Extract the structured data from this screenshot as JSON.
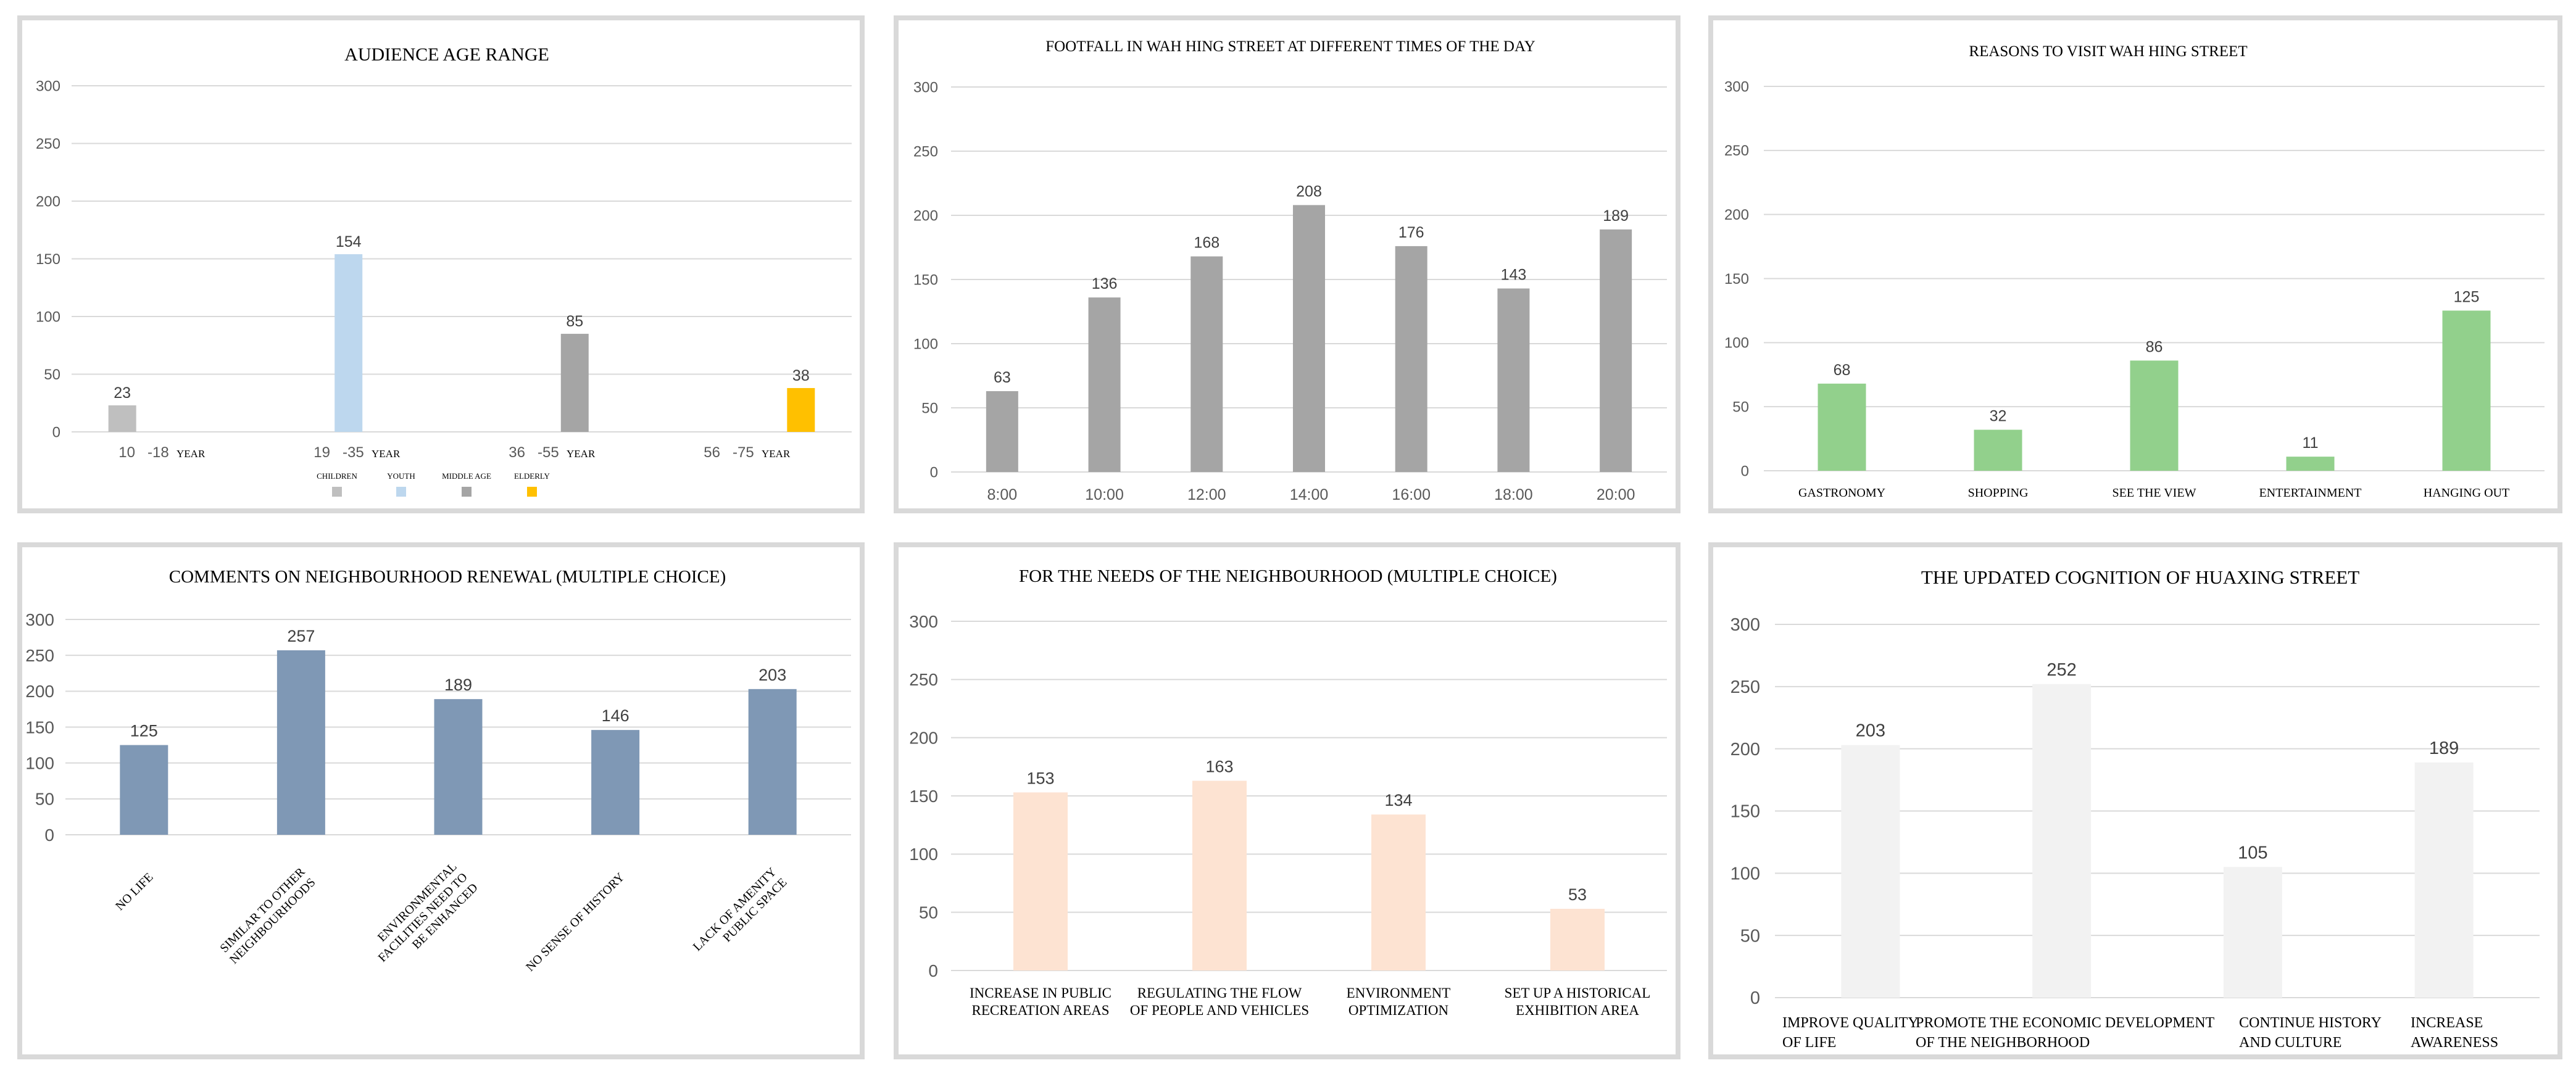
{
  "chart_data": [
    {
      "type": "bar",
      "title": "AUDIENCE AGE RANGE",
      "ylim": [
        0,
        300
      ],
      "yticks": [
        "0",
        "50",
        "100",
        "150",
        "200",
        "250",
        "300"
      ],
      "grid": true,
      "legend_position": "bottom",
      "categories": [
        "10 -18 YEAR",
        "19 -35 YEAR",
        "36 -55 YEAR",
        "56 -75 YEAR"
      ],
      "tick_labels": [
        {
          "number": "10",
          "range": "-18",
          "unit": "YEAR"
        },
        {
          "number": "19",
          "range": "-35",
          "unit": "YEAR"
        },
        {
          "number": "36",
          "range": "-55",
          "unit": "YEAR"
        },
        {
          "number": "56",
          "range": "-75",
          "unit": "YEAR"
        }
      ],
      "series": [
        {
          "name": "CHILDREN",
          "color": "#bfbfbf",
          "values": [
            23,
            null,
            null,
            null
          ]
        },
        {
          "name": "YOUTH",
          "color": "#bdd7ee",
          "values": [
            null,
            154,
            null,
            null
          ]
        },
        {
          "name": "MIDDLE AGE",
          "color": "#a5a5a5",
          "values": [
            null,
            null,
            85,
            null
          ]
        },
        {
          "name": "ELDERLY",
          "color": "#ffc000",
          "values": [
            null,
            null,
            null,
            38
          ]
        }
      ]
    },
    {
      "type": "bar",
      "title": "FOOTFALL IN WAH HING STREET AT DIFFERENT TIMES OF THE DAY",
      "ylim": [
        0,
        300
      ],
      "yticks": [
        "0",
        "50",
        "100",
        "150",
        "200",
        "250",
        "300"
      ],
      "grid": true,
      "categories": [
        "8:00",
        "10:00",
        "12:00",
        "14:00",
        "16:00",
        "18:00",
        "20:00"
      ],
      "values": [
        63,
        136,
        168,
        208,
        176,
        143,
        189
      ],
      "color": "#a5a5a5"
    },
    {
      "type": "bar",
      "title": "REASONS TO VISIT WAH HING STREET",
      "ylim": [
        0,
        300
      ],
      "yticks": [
        "0",
        "50",
        "100",
        "150",
        "200",
        "250",
        "300"
      ],
      "grid": true,
      "categories": [
        "GASTRONOMY",
        "SHOPPING",
        "SEE THE VIEW",
        "ENTERTAINMENT",
        "HANGING OUT"
      ],
      "values": [
        68,
        32,
        86,
        11,
        125
      ],
      "color": "#92d08c"
    },
    {
      "type": "bar",
      "title": "COMMENTS ON NEIGHBOURHOOD RENEWAL (MULTIPLE CHOICE)",
      "ylim": [
        0,
        300
      ],
      "yticks": [
        "0",
        "50",
        "100",
        "150",
        "200",
        "250",
        "300"
      ],
      "grid": true,
      "categories": [
        "NO LIFE",
        "SIMILAR TO OTHER NEIGHBOURHOODS",
        "ENVIRONMENTAL FACILITIES NEED TO BE ENHANCED",
        "NO SENSE OF HISTORY",
        "LACK OF AMENITY PUBLIC SPACE"
      ],
      "category_lines": [
        [
          "NO LIFE"
        ],
        [
          "SIMILAR TO OTHER",
          "NEIGHBOURHOODS"
        ],
        [
          "ENVIRONMENTAL",
          "FACILITIES NEED TO",
          "BE ENHANCED"
        ],
        [
          "NO SENSE OF HISTORY"
        ],
        [
          "LACK OF AMENITY",
          "PUBLIC SPACE"
        ]
      ],
      "values": [
        125,
        257,
        189,
        146,
        203
      ],
      "color": "#7f98b5"
    },
    {
      "type": "bar",
      "title": "FOR THE NEEDS OF THE NEIGHBOURHOOD (MULTIPLE CHOICE)",
      "ylim": [
        0,
        300
      ],
      "yticks": [
        "0",
        "50",
        "100",
        "150",
        "200",
        "250",
        "300"
      ],
      "grid": true,
      "categories": [
        "INCREASE IN PUBLIC RECREATION AREAS",
        "REGULATING THE FLOW OF PEOPLE AND VEHICLES",
        "ENVIRONMENT OPTIMIZATION",
        "SET UP A HISTORICAL EXHIBITION AREA"
      ],
      "category_lines": [
        [
          "INCREASE IN PUBLIC",
          "RECREATION AREAS"
        ],
        [
          "REGULATING THE FLOW",
          "OF PEOPLE AND VEHICLES"
        ],
        [
          "ENVIRONMENT",
          "OPTIMIZATION"
        ],
        [
          "SET UP A HISTORICAL",
          "EXHIBITION AREA"
        ]
      ],
      "values": [
        153,
        163,
        134,
        53
      ],
      "color": "#fde3d2"
    },
    {
      "type": "bar",
      "title": "THE UPDATED COGNITION OF HUAXING STREET",
      "ylim": [
        0,
        300
      ],
      "yticks": [
        "0",
        "50",
        "100",
        "150",
        "200",
        "250",
        "300"
      ],
      "grid": true,
      "categories": [
        "IMPROVE QUALITY OF LIFE",
        "PROMOTE THE ECONOMIC DEVELOPMENT OF THE NEIGHBORHOOD",
        "CONTINUE HISTORY AND CULTURE",
        "INCREASE AWARENESS"
      ],
      "category_lines": [
        [
          "IMPROVE QUALITY",
          "OF LIFE"
        ],
        [
          "PROMOTE THE ECONOMIC DEVELOPMENT",
          "OF THE NEIGHBORHOOD"
        ],
        [
          "CONTINUE HISTORY",
          "AND CULTURE"
        ],
        [
          "INCREASE",
          "AWARENESS"
        ]
      ],
      "values": [
        203,
        252,
        105,
        189
      ],
      "color": "#f2f2f2"
    }
  ]
}
